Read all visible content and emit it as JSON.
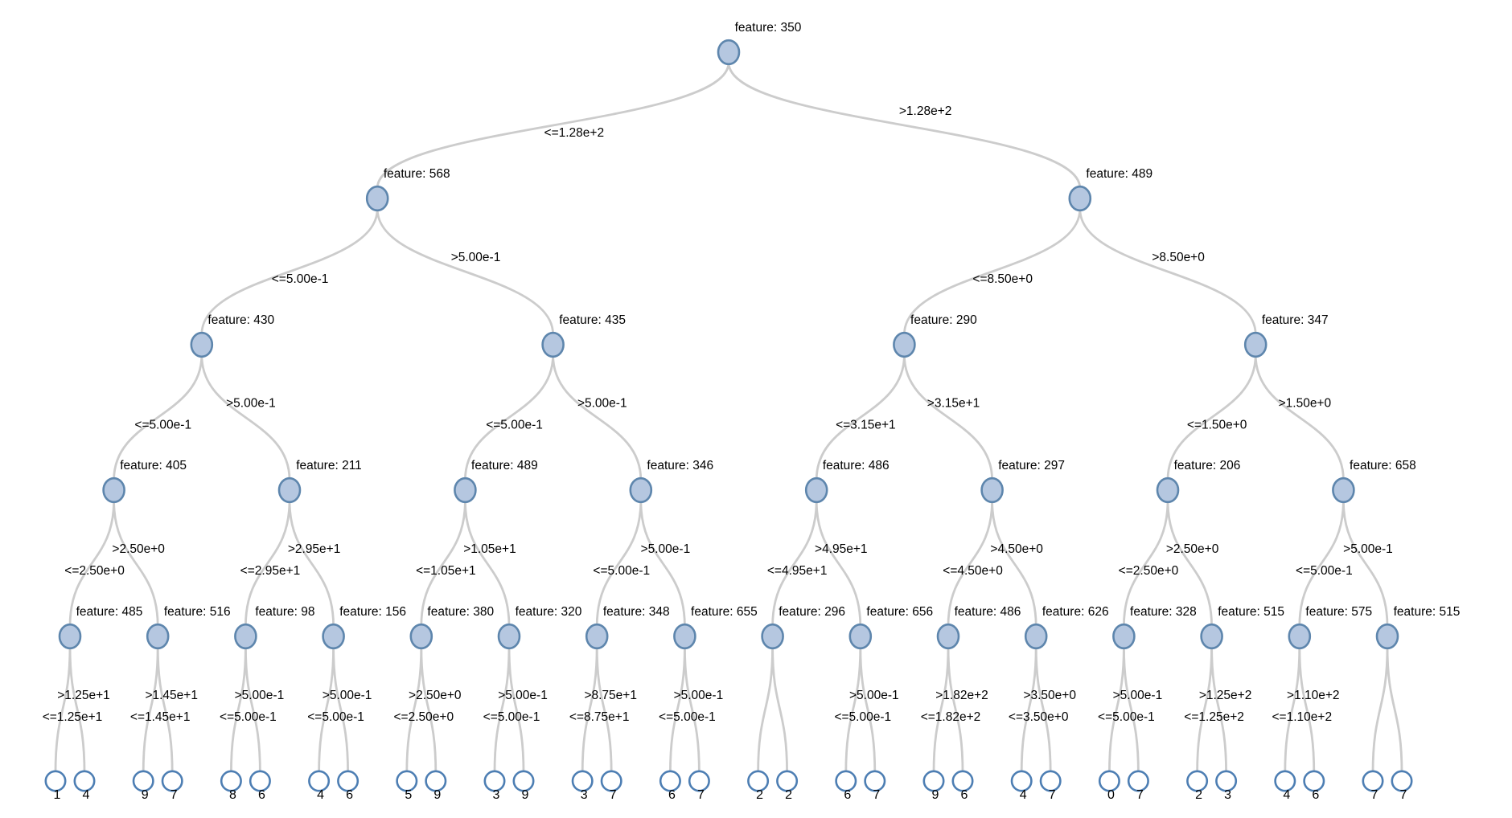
{
  "diagram": {
    "type": "decision-tree",
    "node_label_prefix": "feature: ",
    "le_operator": "<=",
    "gt_operator": ">",
    "colors": {
      "internal_node_fill": "#b5c7e0",
      "internal_node_stroke": "#5e86ad",
      "leaf_node_fill": "#ffffff",
      "leaf_node_stroke": "#4d7eb3",
      "edge": "#cccccc",
      "text": "#000000",
      "background": "#ffffff"
    },
    "tree": {
      "feature": "350",
      "split": "1.28e+2",
      "children": [
        {
          "feature": "568",
          "split": "5.00e-1",
          "children": [
            {
              "feature": "430",
              "split": "5.00e-1",
              "children": [
                {
                  "feature": "405",
                  "split": "2.50e+0",
                  "children": [
                    {
                      "feature": "485",
                      "split": "1.25e+1",
                      "children": [
                        {
                          "value": "1"
                        },
                        {
                          "value": "4"
                        }
                      ]
                    },
                    {
                      "feature": "516",
                      "split": "1.45e+1",
                      "children": [
                        {
                          "value": "9"
                        },
                        {
                          "value": "7"
                        }
                      ]
                    }
                  ]
                },
                {
                  "feature": "211",
                  "split": "2.95e+1",
                  "children": [
                    {
                      "feature": "98",
                      "split": "5.00e-1",
                      "children": [
                        {
                          "value": "8"
                        },
                        {
                          "value": "6"
                        }
                      ]
                    },
                    {
                      "feature": "156",
                      "split": "5.00e-1",
                      "children": [
                        {
                          "value": "4"
                        },
                        {
                          "value": "6"
                        }
                      ]
                    }
                  ]
                }
              ]
            },
            {
              "feature": "435",
              "split": "5.00e-1",
              "children": [
                {
                  "feature": "489",
                  "split": "1.05e+1",
                  "children": [
                    {
                      "feature": "380",
                      "split": "2.50e+0",
                      "children": [
                        {
                          "value": "5"
                        },
                        {
                          "value": "9"
                        }
                      ]
                    },
                    {
                      "feature": "320",
                      "split": "5.00e-1",
                      "children": [
                        {
                          "value": "3"
                        },
                        {
                          "value": "9"
                        }
                      ]
                    }
                  ]
                },
                {
                  "feature": "346",
                  "split": "5.00e-1",
                  "children": [
                    {
                      "feature": "348",
                      "split": "8.75e+1",
                      "children": [
                        {
                          "value": "3"
                        },
                        {
                          "value": "7"
                        }
                      ]
                    },
                    {
                      "feature": "655",
                      "split": "5.00e-1",
                      "children": [
                        {
                          "value": "6"
                        },
                        {
                          "value": "7"
                        }
                      ]
                    }
                  ]
                }
              ]
            }
          ]
        },
        {
          "feature": "489",
          "split": "8.50e+0",
          "children": [
            {
              "feature": "290",
              "split": "3.15e+1",
              "children": [
                {
                  "feature": "486",
                  "split": "4.95e+1",
                  "children": [
                    {
                      "feature": "296",
                      "split": null,
                      "children": [
                        {
                          "value": "2"
                        },
                        {
                          "value": "2"
                        }
                      ]
                    },
                    {
                      "feature": "656",
                      "split": "5.00e-1",
                      "children": [
                        {
                          "value": "6"
                        },
                        {
                          "value": "7"
                        }
                      ]
                    }
                  ]
                },
                {
                  "feature": "297",
                  "split": "4.50e+0",
                  "children": [
                    {
                      "feature": "486",
                      "split": "1.82e+2",
                      "children": [
                        {
                          "value": "9"
                        },
                        {
                          "value": "6"
                        }
                      ]
                    },
                    {
                      "feature": "626",
                      "split": "3.50e+0",
                      "children": [
                        {
                          "value": "4"
                        },
                        {
                          "value": "7"
                        }
                      ]
                    }
                  ]
                }
              ]
            },
            {
              "feature": "347",
              "split": "1.50e+0",
              "children": [
                {
                  "feature": "206",
                  "split": "2.50e+0",
                  "children": [
                    {
                      "feature": "328",
                      "split": "5.00e-1",
                      "children": [
                        {
                          "value": "0"
                        },
                        {
                          "value": "7"
                        }
                      ]
                    },
                    {
                      "feature": "515",
                      "split": "1.25e+2",
                      "children": [
                        {
                          "value": "2"
                        },
                        {
                          "value": "3"
                        }
                      ]
                    }
                  ]
                },
                {
                  "feature": "658",
                  "split": "5.00e-1",
                  "children": [
                    {
                      "feature": "575",
                      "split": "1.10e+2",
                      "children": [
                        {
                          "value": "4"
                        },
                        {
                          "value": "6"
                        }
                      ]
                    },
                    {
                      "feature": "515",
                      "split": null,
                      "children": [
                        {
                          "value": "7"
                        },
                        {
                          "value": "7"
                        }
                      ]
                    }
                  ]
                }
              ]
            }
          ]
        }
      ]
    }
  }
}
